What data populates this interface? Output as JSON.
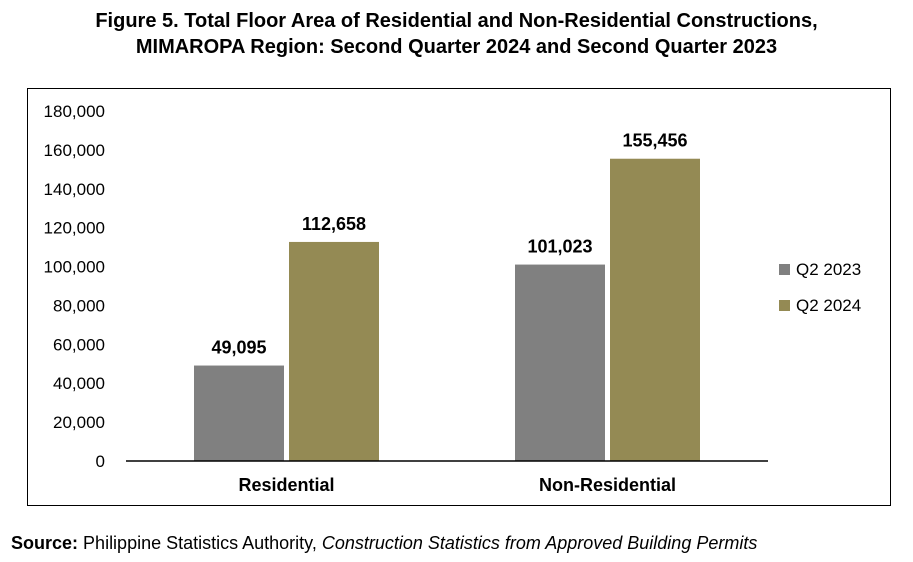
{
  "title_line1": "Figure 5. Total Floor Area of Residential and Non-Residential Constructions,",
  "title_line2": "MIMAROPA Region: Second Quarter 2024 and Second Quarter 2023",
  "source": {
    "label": "Source:",
    "agency": "Philippine Statistics Authority, ",
    "publication": "Construction Statistics from Approved Building Permits"
  },
  "colors": {
    "Q2 2023": "#808080",
    "Q2 2024": "#948A54"
  },
  "chart_data": {
    "type": "bar",
    "categories": [
      "Residential",
      "Non-Residential"
    ],
    "series": [
      {
        "name": "Q2 2023",
        "values": [
          49095,
          101023
        ],
        "labels": [
          "49,095",
          "101,023"
        ]
      },
      {
        "name": "Q2 2024",
        "values": [
          112658,
          155456
        ],
        "labels": [
          "112,658",
          "155,456"
        ]
      }
    ],
    "ylim": [
      0,
      180000
    ],
    "yticks": [
      0,
      20000,
      40000,
      60000,
      80000,
      100000,
      120000,
      140000,
      160000,
      180000
    ],
    "ytick_labels": [
      "0",
      "20,000",
      "40,000",
      "60,000",
      "80,000",
      "100,000",
      "120,000",
      "140,000",
      "160,000",
      "180,000"
    ],
    "grid": false,
    "legend": "right"
  }
}
